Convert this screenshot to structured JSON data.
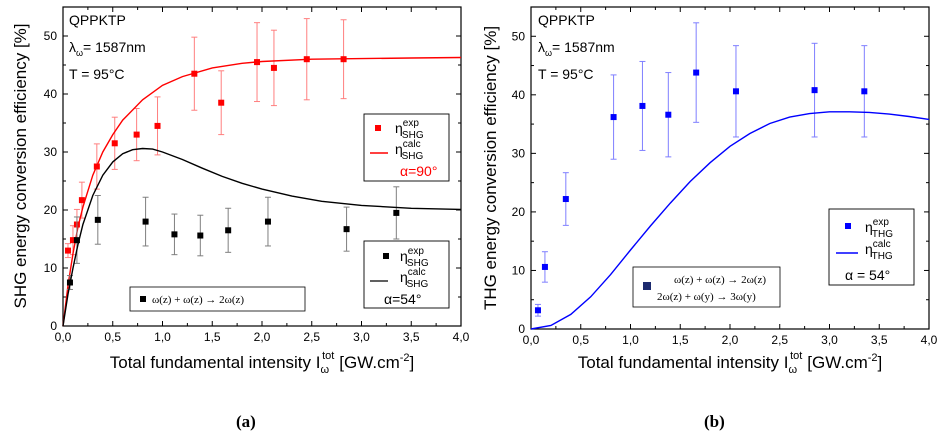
{
  "chart_data": [
    {
      "type": "scatter",
      "panel_label": "(a)",
      "xlabel_main": "Total fundamental intensity I",
      "xlabel_sub": "ω",
      "xlabel_sup": "tot",
      "xlabel_unit": "[GW.cm",
      "xlabel_unit_sup": "-2",
      "xlabel_close": "]",
      "ylabel": "SHG energy conversion efficiency  [%]",
      "xlim": [
        0,
        4
      ],
      "ylim": [
        0,
        55
      ],
      "xticks": [
        "0,0",
        "0,5",
        "1,0",
        "1,5",
        "2,0",
        "2,5",
        "3,0",
        "3,5",
        "4,0"
      ],
      "xtick_values": [
        0,
        0.5,
        1,
        1.5,
        2,
        2.5,
        3,
        3.5,
        4
      ],
      "yticks": [
        "0",
        "10",
        "20",
        "30",
        "40",
        "50"
      ],
      "ytick_values": [
        0,
        10,
        20,
        30,
        40,
        50
      ],
      "info": [
        "QPPKTP",
        "λ",
        "ω",
        "= 1587nm",
        "T = 95°C"
      ],
      "series": [
        {
          "name": "η",
          "name_sup": "exp",
          "name_sub": "SHG",
          "group": "α=90°",
          "kind": "points",
          "color": "#ff0000",
          "x": [
            0.05,
            0.1,
            0.14,
            0.19,
            0.34,
            0.52,
            0.74,
            0.95,
            1.32,
            1.59,
            1.95,
            2.12,
            2.45,
            2.82
          ],
          "y": [
            13.0,
            14.8,
            17.5,
            21.7,
            27.5,
            31.5,
            33.0,
            34.5,
            43.5,
            38.5,
            45.5,
            44.5,
            46.0,
            46.0
          ],
          "err": [
            1.2,
            2.5,
            2.6,
            3.1,
            3.9,
            4.5,
            4.5,
            5.0,
            6.3,
            5.5,
            6.8,
            6.5,
            7.0,
            6.8
          ]
        },
        {
          "name": "η",
          "name_sup": "calc",
          "name_sub": "SHG",
          "group": "α=90°",
          "kind": "line",
          "color": "#ff0000",
          "x": [
            0,
            0.05,
            0.1,
            0.15,
            0.2,
            0.3,
            0.4,
            0.5,
            0.6,
            0.8,
            1.0,
            1.2,
            1.5,
            1.8,
            2.0,
            2.5,
            3.0,
            3.5,
            4.0
          ],
          "y": [
            0,
            7,
            12.5,
            17,
            20.5,
            26,
            30,
            33,
            35.5,
            39,
            41.5,
            43,
            44.5,
            45.3,
            45.6,
            46.0,
            46.1,
            46.2,
            46.3
          ]
        },
        {
          "name": "η",
          "name_sup": "exp",
          "name_sub": "SHG",
          "group": "α=54°",
          "kind": "points",
          "color": "#000000",
          "x": [
            0.07,
            0.14,
            0.35,
            0.83,
            1.12,
            1.38,
            1.66,
            2.06,
            2.85,
            3.35
          ],
          "y": [
            7.5,
            14.8,
            18.3,
            18.0,
            15.8,
            15.6,
            16.5,
            18.0,
            16.7,
            19.5
          ],
          "err": [
            1.2,
            4.0,
            4.2,
            4.2,
            3.5,
            3.5,
            3.8,
            4.2,
            3.8,
            4.5
          ]
        },
        {
          "name": "η",
          "name_sup": "calc",
          "name_sub": "SHG",
          "group": "α=54°",
          "kind": "line",
          "color": "#000000",
          "x": [
            0,
            0.05,
            0.1,
            0.15,
            0.2,
            0.3,
            0.4,
            0.5,
            0.6,
            0.7,
            0.8,
            0.9,
            1.0,
            1.2,
            1.4,
            1.6,
            1.8,
            2.0,
            2.3,
            2.6,
            3.0,
            3.5,
            4.0
          ],
          "y": [
            0,
            5.5,
            10,
            14,
            17.5,
            22.5,
            26,
            28.3,
            29.7,
            30.4,
            30.6,
            30.5,
            30.0,
            28.7,
            27.2,
            25.8,
            24.6,
            23.6,
            22.4,
            21.5,
            20.8,
            20.3,
            20.1
          ]
        }
      ],
      "legends": [
        {
          "text": "α=90°",
          "color": "#ff0000",
          "position": "right"
        },
        {
          "text": "α=54°",
          "color": "#000000",
          "position": "bottom-right"
        }
      ],
      "process": "ω(z) + ω(z) → 2ω(z)",
      "grid": false
    },
    {
      "type": "scatter",
      "panel_label": "(b)",
      "xlabel_main": "Total fundamental intensity I",
      "xlabel_sub": "ω",
      "xlabel_sup": "tot",
      "xlabel_unit": "[GW.cm",
      "xlabel_unit_sup": "-2",
      "xlabel_close": "]",
      "ylabel": "THG energy conversion efficiency  [%]",
      "xlim": [
        0,
        4
      ],
      "ylim": [
        0,
        55
      ],
      "xticks": [
        "0,0",
        "0,5",
        "1,0",
        "1,5",
        "2,0",
        "2,5",
        "3,0",
        "3,5",
        "4,0"
      ],
      "xtick_values": [
        0,
        0.5,
        1,
        1.5,
        2,
        2.5,
        3,
        3.5,
        4
      ],
      "yticks": [
        "0",
        "10",
        "20",
        "30",
        "40",
        "50"
      ],
      "ytick_values": [
        0,
        10,
        20,
        30,
        40,
        50
      ],
      "info": [
        "QPPKTP",
        "λ",
        "ω",
        "= 1587nm",
        "T = 95°C"
      ],
      "series": [
        {
          "name": "η",
          "name_sup": "exp",
          "name_sub": "THG",
          "kind": "points",
          "color": "#0000ff",
          "x": [
            0.07,
            0.14,
            0.35,
            0.83,
            1.12,
            1.38,
            1.66,
            2.06,
            2.85,
            3.35
          ],
          "y": [
            3.2,
            10.6,
            22.2,
            36.2,
            38.1,
            36.6,
            43.8,
            40.6,
            40.8,
            40.6
          ],
          "err": [
            1.0,
            2.6,
            4.5,
            7.2,
            7.6,
            7.2,
            8.5,
            7.8,
            8.0,
            7.8
          ]
        },
        {
          "name": "η",
          "name_sup": "calc",
          "name_sub": "THG",
          "kind": "line",
          "color": "#0000ff",
          "x": [
            0,
            0.2,
            0.4,
            0.6,
            0.8,
            1.0,
            1.2,
            1.4,
            1.6,
            1.8,
            2.0,
            2.2,
            2.4,
            2.6,
            2.8,
            3.0,
            3.2,
            3.4,
            3.6,
            3.8,
            4.0
          ],
          "y": [
            0,
            0.6,
            2.5,
            5.5,
            9.3,
            13.5,
            17.6,
            21.5,
            25.2,
            28.4,
            31.2,
            33.4,
            35.1,
            36.2,
            36.8,
            37.1,
            37.1,
            37.0,
            36.7,
            36.3,
            35.8
          ]
        }
      ],
      "legends": [
        {
          "text": "α = 54°",
          "color": "#000000",
          "position": "right"
        }
      ],
      "process_lines": [
        "ω(z) + ω(z) → 2ω(z)",
        "2ω(z) + ω(y) → 3ω(y)"
      ],
      "grid": false
    }
  ]
}
